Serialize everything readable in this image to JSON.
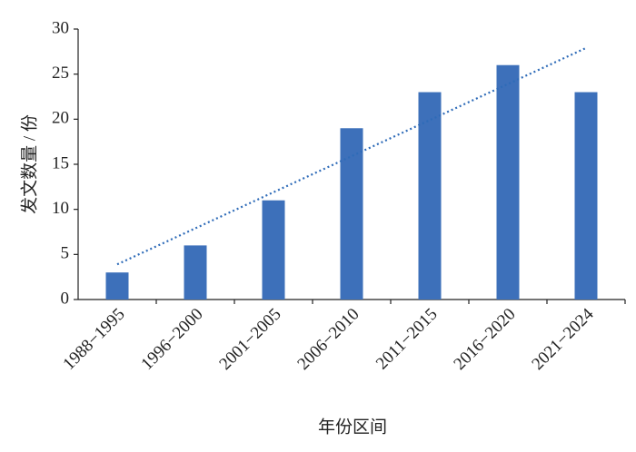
{
  "chart_data": {
    "type": "bar",
    "x_label": "年份区间",
    "y_label": "发文数量 / 份",
    "categories": [
      "1988−1995",
      "1996−2000",
      "2001−2005",
      "2006−2010",
      "2011−2015",
      "2016−2020",
      "2021−2024"
    ],
    "values": [
      3,
      6,
      11,
      19,
      23,
      26,
      23
    ],
    "color": "#3d70ba",
    "ylim": [
      0,
      30
    ],
    "yticks": [
      0,
      5,
      10,
      15,
      20,
      25,
      30
    ],
    "trendline": {
      "values": [
        3.9,
        27.9
      ],
      "color": "#2e6bb8",
      "style": "dotted"
    }
  }
}
